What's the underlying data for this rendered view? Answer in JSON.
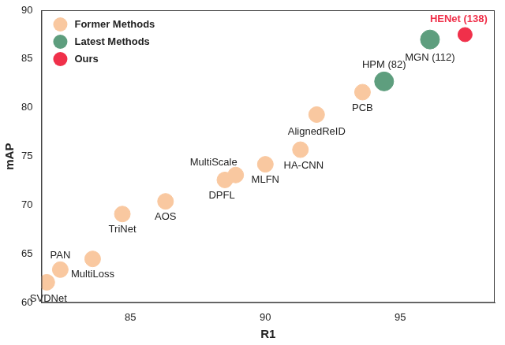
{
  "chart_data": {
    "type": "scatter",
    "x_label": "R1",
    "y_label": "mAP",
    "xlim": [
      81.7,
      98.5
    ],
    "xticks": [
      85,
      90,
      95
    ],
    "ylim": [
      60,
      90
    ],
    "yticks": [
      60,
      65,
      70,
      75,
      80,
      85,
      90
    ],
    "grid": false,
    "legend": "upper left",
    "series": [
      {
        "name": "Former Methods",
        "color": "#f9c8a0",
        "marker": "circle",
        "labels": [
          "SVDNet",
          "PAN",
          "MultiLoss",
          "TriNet",
          "AOS",
          "DPFL",
          "MultiScale",
          "MLFN",
          "HA-CNN",
          "AlignedReID",
          "PCB"
        ],
        "x": [
          81.9,
          82.4,
          83.6,
          84.7,
          86.3,
          88.5,
          88.9,
          90.0,
          91.3,
          91.9,
          93.6
        ],
        "values": [
          62.1,
          63.4,
          64.5,
          69.1,
          70.4,
          72.6,
          73.1,
          74.2,
          75.7,
          79.3,
          81.6
        ]
      },
      {
        "name": "Latest Methods",
        "color": "#5e9e7e",
        "marker": "circle",
        "labels": [
          "HPM (82)",
          "MGN (112)"
        ],
        "x": [
          94.4,
          96.1
        ],
        "values": [
          82.7,
          87.0
        ]
      },
      {
        "name": "Ours",
        "color": "#f0304a",
        "marker": "circle",
        "labels": [
          "HENet (138)"
        ],
        "x": [
          97.4
        ],
        "values": [
          87.5
        ]
      }
    ]
  }
}
